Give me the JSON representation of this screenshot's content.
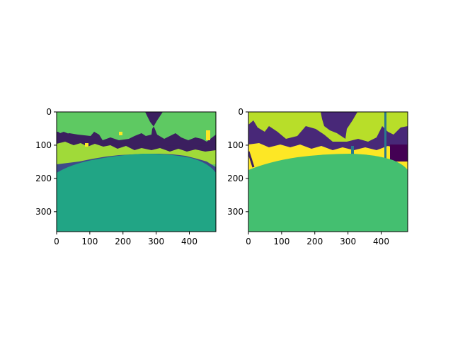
{
  "chart_data": [
    {
      "type": "heatmap",
      "title": "",
      "xlabel": "",
      "ylabel": "",
      "xlim": [
        0,
        480
      ],
      "ylim": [
        360,
        0
      ],
      "x_ticks": [
        0,
        100,
        200,
        300,
        400
      ],
      "y_ticks": [
        0,
        100,
        200,
        300
      ],
      "colormap": "viridis",
      "colors": {
        "sky": "#5ec962",
        "tree_dark": "#3b1f5f",
        "vegetation_lime": "#a0da39",
        "vegetation_yellow": "#fde725",
        "shadow_blue": "#3e4a89",
        "road": "#21a585"
      }
    },
    {
      "type": "heatmap",
      "title": "",
      "xlabel": "",
      "ylabel": "",
      "xlim": [
        0,
        480
      ],
      "ylim": [
        360,
        0
      ],
      "x_ticks": [
        0,
        100,
        200,
        300,
        400
      ],
      "y_ticks": [
        0,
        100,
        200,
        300
      ],
      "colormap": "viridis",
      "colors": {
        "sky": "#b8de29",
        "tree_dark": "#482878",
        "vegetation_yellow": "#fde725",
        "pole_teal": "#2a788e",
        "object_maroon": "#440154",
        "road": "#44bf70"
      }
    }
  ]
}
